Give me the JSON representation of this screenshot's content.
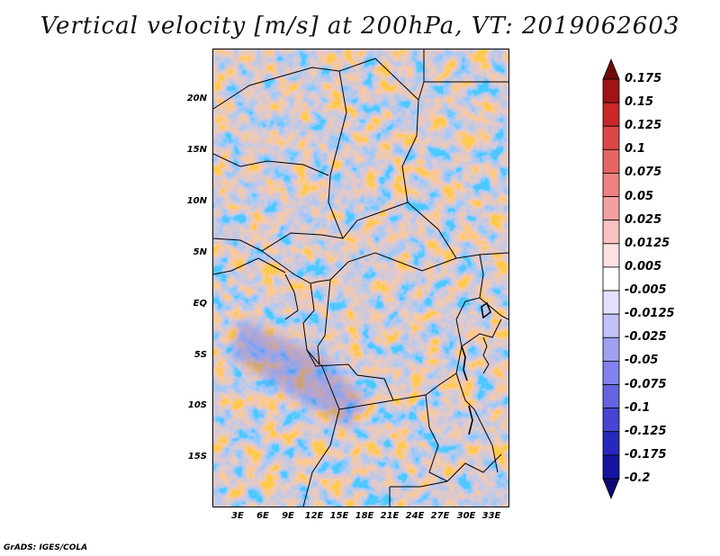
{
  "title": "Vertical velocity [m/s] at 200hPa, VT: 2019062603",
  "credit": "GrADS: IGES/COLA",
  "lat_labels": [
    "20N",
    "15N",
    "10N",
    "5N",
    "EQ",
    "5S",
    "10S",
    "15S"
  ],
  "lon_labels": [
    "3E",
    "6E",
    "9E",
    "12E",
    "15E",
    "18E",
    "21E",
    "24E",
    "27E",
    "30E",
    "33E"
  ],
  "colorbar": {
    "levels": [
      "0.175",
      "0.15",
      "0.125",
      "0.1",
      "0.075",
      "0.05",
      "0.025",
      "0.0125",
      "0.005",
      "-0.005",
      "-0.0125",
      "-0.025",
      "-0.05",
      "-0.075",
      "-0.1",
      "-0.125",
      "-0.175",
      "-0.2"
    ],
    "colors": [
      "#6e0a0a",
      "#a01414",
      "#c82828",
      "#dc4646",
      "#e66464",
      "#ee8282",
      "#f4a0a0",
      "#f8c2c2",
      "#fce2e2",
      "#ffffff",
      "#e2e2fc",
      "#c2c2f8",
      "#a0a0f2",
      "#8282ec",
      "#6464e0",
      "#4646d2",
      "#2828bc",
      "#1414a0",
      "#0a0a6e"
    ]
  }
}
